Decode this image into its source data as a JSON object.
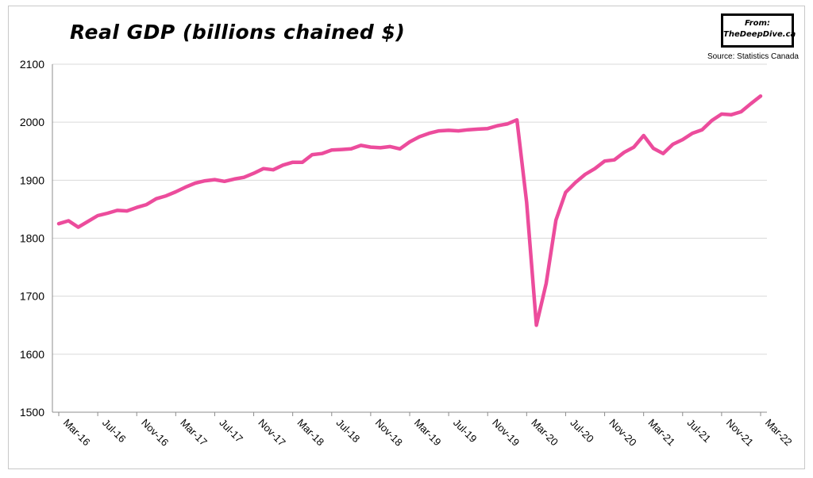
{
  "title": "Real GDP (billions chained $)",
  "brand": {
    "line1": "From:",
    "line2": "TheDeepDive.ca"
  },
  "source": "Source: Statistics Canada",
  "colors": {
    "line": "#ec4c9c",
    "grid": "#d9d9d9",
    "axis": "#8c8c8c"
  },
  "chart_data": {
    "type": "line",
    "title": "Real GDP (billions chained $)",
    "xlabel": "",
    "ylabel": "",
    "ylim": [
      1500,
      2100
    ],
    "yticks": [
      1500,
      1600,
      1700,
      1800,
      1900,
      2000,
      2100
    ],
    "grid": true,
    "x": [
      "Mar-16",
      "Apr-16",
      "May-16",
      "Jun-16",
      "Jul-16",
      "Aug-16",
      "Sep-16",
      "Oct-16",
      "Nov-16",
      "Dec-16",
      "Jan-17",
      "Feb-17",
      "Mar-17",
      "Apr-17",
      "May-17",
      "Jun-17",
      "Jul-17",
      "Aug-17",
      "Sep-17",
      "Oct-17",
      "Nov-17",
      "Dec-17",
      "Jan-18",
      "Feb-18",
      "Mar-18",
      "Apr-18",
      "May-18",
      "Jun-18",
      "Jul-18",
      "Aug-18",
      "Sep-18",
      "Oct-18",
      "Nov-18",
      "Dec-18",
      "Jan-19",
      "Feb-19",
      "Mar-19",
      "Apr-19",
      "May-19",
      "Jun-19",
      "Jul-19",
      "Aug-19",
      "Sep-19",
      "Oct-19",
      "Nov-19",
      "Dec-19",
      "Jan-20",
      "Feb-20",
      "Mar-20",
      "Apr-20",
      "May-20",
      "Jun-20",
      "Jul-20",
      "Aug-20",
      "Sep-20",
      "Oct-20",
      "Nov-20",
      "Dec-20",
      "Jan-21",
      "Feb-21",
      "Mar-21",
      "Apr-21",
      "May-21",
      "Jun-21",
      "Jul-21",
      "Aug-21",
      "Sep-21",
      "Oct-21",
      "Nov-21",
      "Dec-21",
      "Jan-22",
      "Feb-22",
      "Mar-22"
    ],
    "x_tick_labels": [
      "Mar-16",
      "Jul-16",
      "Nov-16",
      "Mar-17",
      "Jul-17",
      "Nov-17",
      "Mar-18",
      "Jul-18",
      "Nov-18",
      "Mar-19",
      "Jul-19",
      "Nov-19",
      "Mar-20",
      "Jul-20",
      "Nov-20",
      "Mar-21",
      "Jul-21",
      "Nov-21",
      "Mar-22"
    ],
    "series": [
      {
        "values": [
          1825,
          1830,
          1819,
          1829,
          1839,
          1843,
          1848,
          1847,
          1853,
          1858,
          1868,
          1873,
          1880,
          1888,
          1895,
          1899,
          1901,
          1898,
          1902,
          1905,
          1912,
          1920,
          1918,
          1926,
          1931,
          1931,
          1944,
          1946,
          1952,
          1953,
          1954,
          1960,
          1957,
          1956,
          1958,
          1954,
          1966,
          1975,
          1981,
          1985,
          1986,
          1985,
          1987,
          1988,
          1989,
          1994,
          1997,
          2004,
          1862,
          1650,
          1722,
          1831,
          1879,
          1896,
          1910,
          1920,
          1933,
          1935,
          1948,
          1957,
          1977,
          1955,
          1946,
          1962,
          1970,
          1981,
          1987,
          2003,
          2014,
          2013,
          2018,
          2032,
          2045
        ]
      }
    ]
  }
}
